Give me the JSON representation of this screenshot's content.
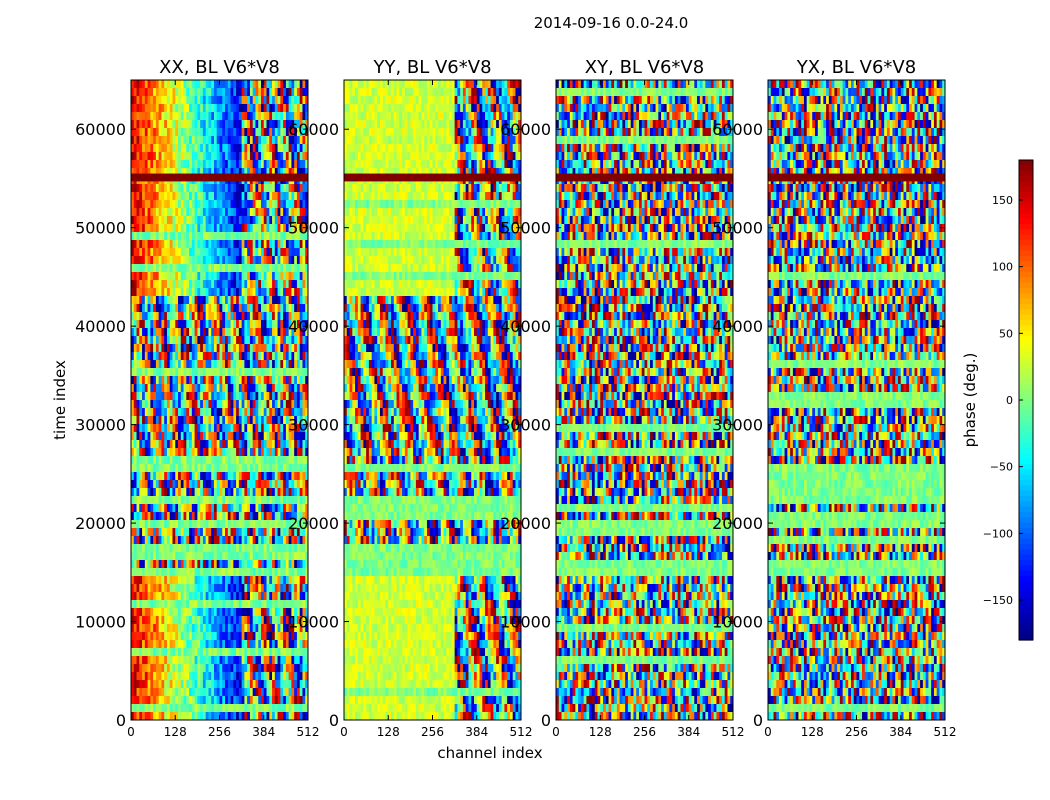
{
  "figure": {
    "suptitle": "2014-09-16 0.0-24.0",
    "xlabel": "channel index",
    "ylabel": "time index"
  },
  "colorbar": {
    "label": "phase (deg.)",
    "range": [
      -180,
      180
    ],
    "ticks": [
      -150,
      -100,
      -50,
      0,
      50,
      100,
      150
    ],
    "tick_labels": [
      "−150",
      "−100",
      "−50",
      "0",
      "50",
      "100",
      "150"
    ],
    "colormap": [
      "#00007f",
      "#0000ff",
      "#007fff",
      "#00ffff",
      "#7fff7f",
      "#ffff00",
      "#ff7f00",
      "#ff0000",
      "#7f0000"
    ]
  },
  "chart_data": [
    {
      "type": "heatmap",
      "title": "XX, BL V6*V8",
      "xlabel": "channel index",
      "ylabel": "time index",
      "xlim": [
        0,
        512
      ],
      "ylim": [
        0,
        65000
      ],
      "xticks": [
        0,
        128,
        256,
        384,
        512
      ],
      "yticks": [
        0,
        10000,
        20000,
        30000,
        40000,
        50000,
        60000
      ],
      "value": "phase (deg.)",
      "pattern": "phase gradient (red at low channels to blue near ch 320), then wrapping fringes"
    },
    {
      "type": "heatmap",
      "title": "YY, BL V6*V8",
      "xlabel": "channel index",
      "ylabel": "time index",
      "xlim": [
        0,
        512
      ],
      "ylim": [
        0,
        65000
      ],
      "xticks": [
        0,
        128,
        256,
        384,
        512
      ],
      "yticks": [
        0,
        10000,
        20000,
        30000,
        40000,
        50000,
        60000
      ],
      "value": "phase (deg.)",
      "pattern": "mostly near 0-50 deg (green-yellow) with fringe region above ch 320"
    },
    {
      "type": "heatmap",
      "title": "XY, BL V6*V8",
      "xlabel": "channel index",
      "ylabel": "time index",
      "xlim": [
        0,
        512
      ],
      "ylim": [
        0,
        65000
      ],
      "xticks": [
        0,
        128,
        256,
        384,
        512
      ],
      "yticks": [
        0,
        10000,
        20000,
        30000,
        40000,
        50000,
        60000
      ],
      "value": "phase (deg.)",
      "pattern": "noise-like phase across all channels"
    },
    {
      "type": "heatmap",
      "title": "YX, BL V6*V8",
      "xlabel": "channel index",
      "ylabel": "time index",
      "xlim": [
        0,
        512
      ],
      "ylim": [
        0,
        65000
      ],
      "xticks": [
        0,
        128,
        256,
        384,
        512
      ],
      "yticks": [
        0,
        10000,
        20000,
        30000,
        40000,
        50000,
        60000
      ],
      "value": "phase (deg.)",
      "pattern": "noise-like phase across all channels"
    }
  ]
}
